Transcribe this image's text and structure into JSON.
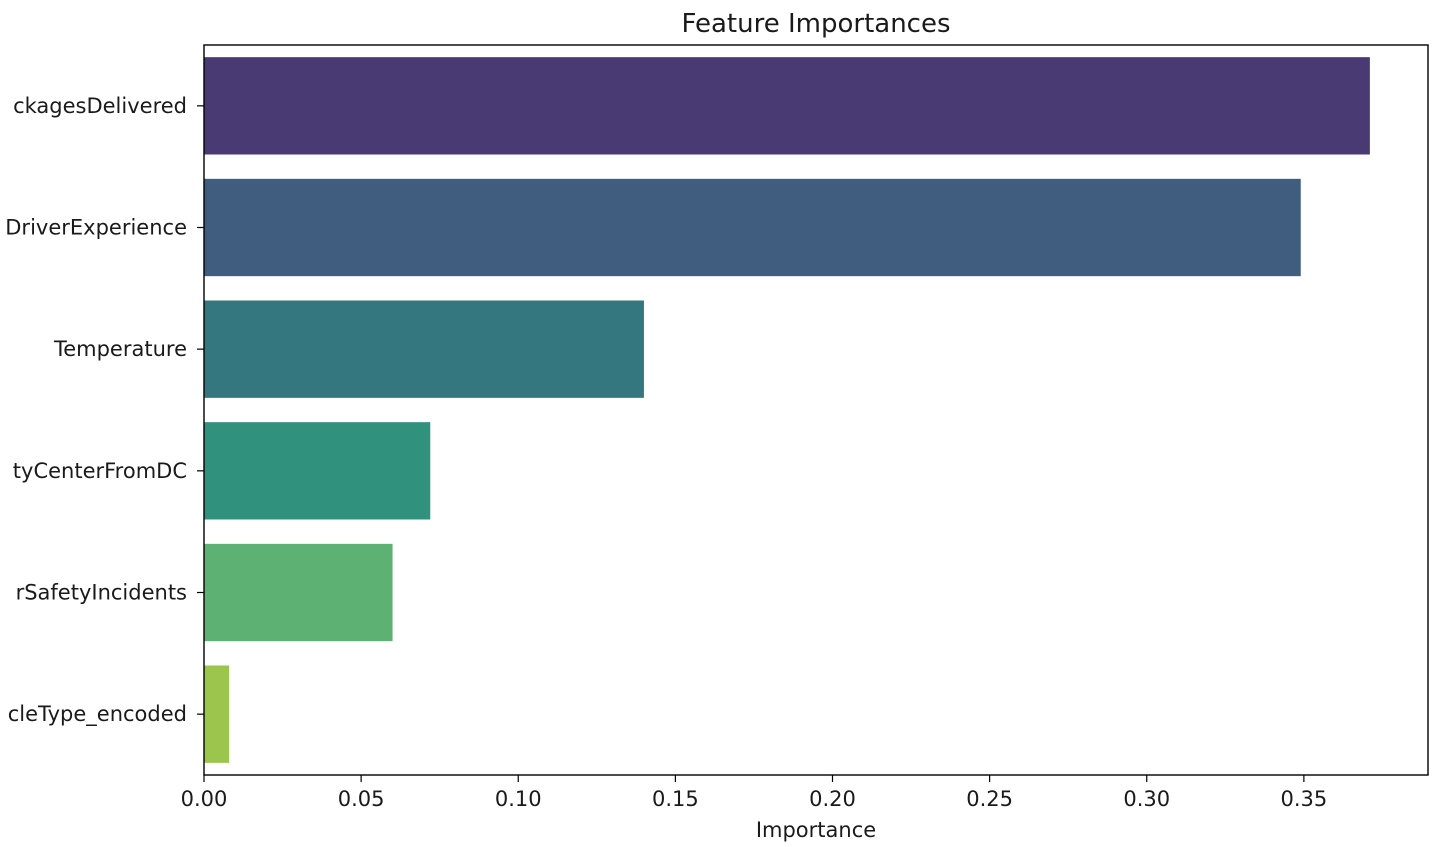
{
  "chart_data": {
    "type": "bar",
    "orientation": "horizontal",
    "title": "Feature Importances",
    "xlabel": "Importance",
    "ylabel": "",
    "categories": [
      "ckagesDelivered",
      "DriverExperience",
      "Temperature",
      "tyCenterFromDC",
      "rSafetyIncidents",
      "cleType_encoded"
    ],
    "values": [
      0.371,
      0.349,
      0.14,
      0.072,
      0.06,
      0.008
    ],
    "colors": [
      "#4a3a73",
      "#405d80",
      "#35777e",
      "#30917c",
      "#5cb173",
      "#9bc54c"
    ],
    "xlim": [
      0.0,
      0.3895
    ],
    "xticks": [
      0.0,
      0.05,
      0.1,
      0.15,
      0.2,
      0.25,
      0.3,
      0.35
    ],
    "xtick_labels": [
      "0.00",
      "0.05",
      "0.10",
      "0.15",
      "0.20",
      "0.25",
      "0.30",
      "0.35"
    ],
    "grid": false,
    "legend": "none"
  }
}
